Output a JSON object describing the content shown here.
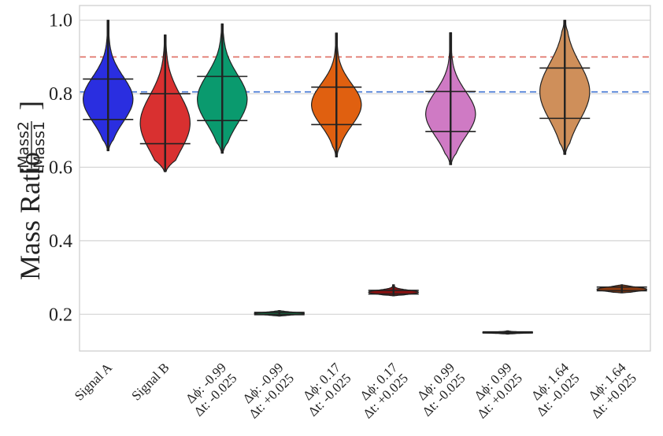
{
  "chart_data": {
    "type": "violin",
    "ylabel": "Mass Ratio",
    "ylabel_fraction": {
      "numerator": "Mass2",
      "denominator": "Mass1"
    },
    "yticks": [
      "0.2",
      "0.4",
      "0.6",
      "0.8",
      "1.0"
    ],
    "ytick_values": [
      0.2,
      0.4,
      0.6,
      0.8,
      1.0
    ],
    "ylim": [
      0.1,
      1.04
    ],
    "grid": true,
    "reference_lines": [
      {
        "value": 0.9,
        "color": "#e0756b",
        "style": "dashed"
      },
      {
        "value": 0.805,
        "color": "#4f7fd6",
        "style": "dashed"
      }
    ],
    "categories": [
      {
        "label": [
          "Signal A"
        ],
        "color": "#2a2ee0",
        "min": 0.645,
        "max": 1.0,
        "q_low": 0.73,
        "q_high": 0.84,
        "median": 0.785
      },
      {
        "label": [
          "Signal B"
        ],
        "color": "#d93030",
        "min": 0.588,
        "max": 0.96,
        "q_low": 0.664,
        "q_high": 0.8,
        "median": 0.72
      },
      {
        "label": [
          "Δϕ: -0.99",
          "Δt: -0.025"
        ],
        "color": "#0a9a6e",
        "min": 0.638,
        "max": 0.99,
        "q_low": 0.727,
        "q_high": 0.847,
        "median": 0.785
      },
      {
        "label": [
          "Δϕ: -0.99",
          "Δt: +0.025"
        ],
        "color": "#1a5a3a",
        "min": 0.195,
        "max": 0.21,
        "q_low": 0.199,
        "q_high": 0.205,
        "median": 0.202
      },
      {
        "label": [
          "Δϕ: 0.17",
          "Δt: -0.025"
        ],
        "color": "#e06010",
        "min": 0.628,
        "max": 0.965,
        "q_low": 0.716,
        "q_high": 0.818,
        "median": 0.77
      },
      {
        "label": [
          "Δϕ: 0.17",
          "Δt: +0.025"
        ],
        "color": "#8a1010",
        "min": 0.25,
        "max": 0.28,
        "q_low": 0.255,
        "q_high": 0.265,
        "median": 0.26
      },
      {
        "label": [
          "Δϕ: 0.99",
          "Δt: -0.025"
        ],
        "color": "#cf7ac4",
        "min": 0.607,
        "max": 0.966,
        "q_low": 0.697,
        "q_high": 0.806,
        "median": 0.745
      },
      {
        "label": [
          "Δϕ: 0.99",
          "Δt: +0.025"
        ],
        "color": "#3d3d3d",
        "min": 0.146,
        "max": 0.155,
        "q_low": 0.149,
        "q_high": 0.152,
        "median": 0.15
      },
      {
        "label": [
          "Δϕ: 1.64",
          "Δt: -0.025"
        ],
        "color": "#cf8f5a",
        "min": 0.635,
        "max": 1.0,
        "q_low": 0.733,
        "q_high": 0.87,
        "median": 0.805
      },
      {
        "label": [
          "Δϕ: 1.64",
          "Δt: +0.025"
        ],
        "color": "#8a3a10",
        "min": 0.258,
        "max": 0.28,
        "q_low": 0.264,
        "q_high": 0.274,
        "median": 0.268
      }
    ]
  }
}
